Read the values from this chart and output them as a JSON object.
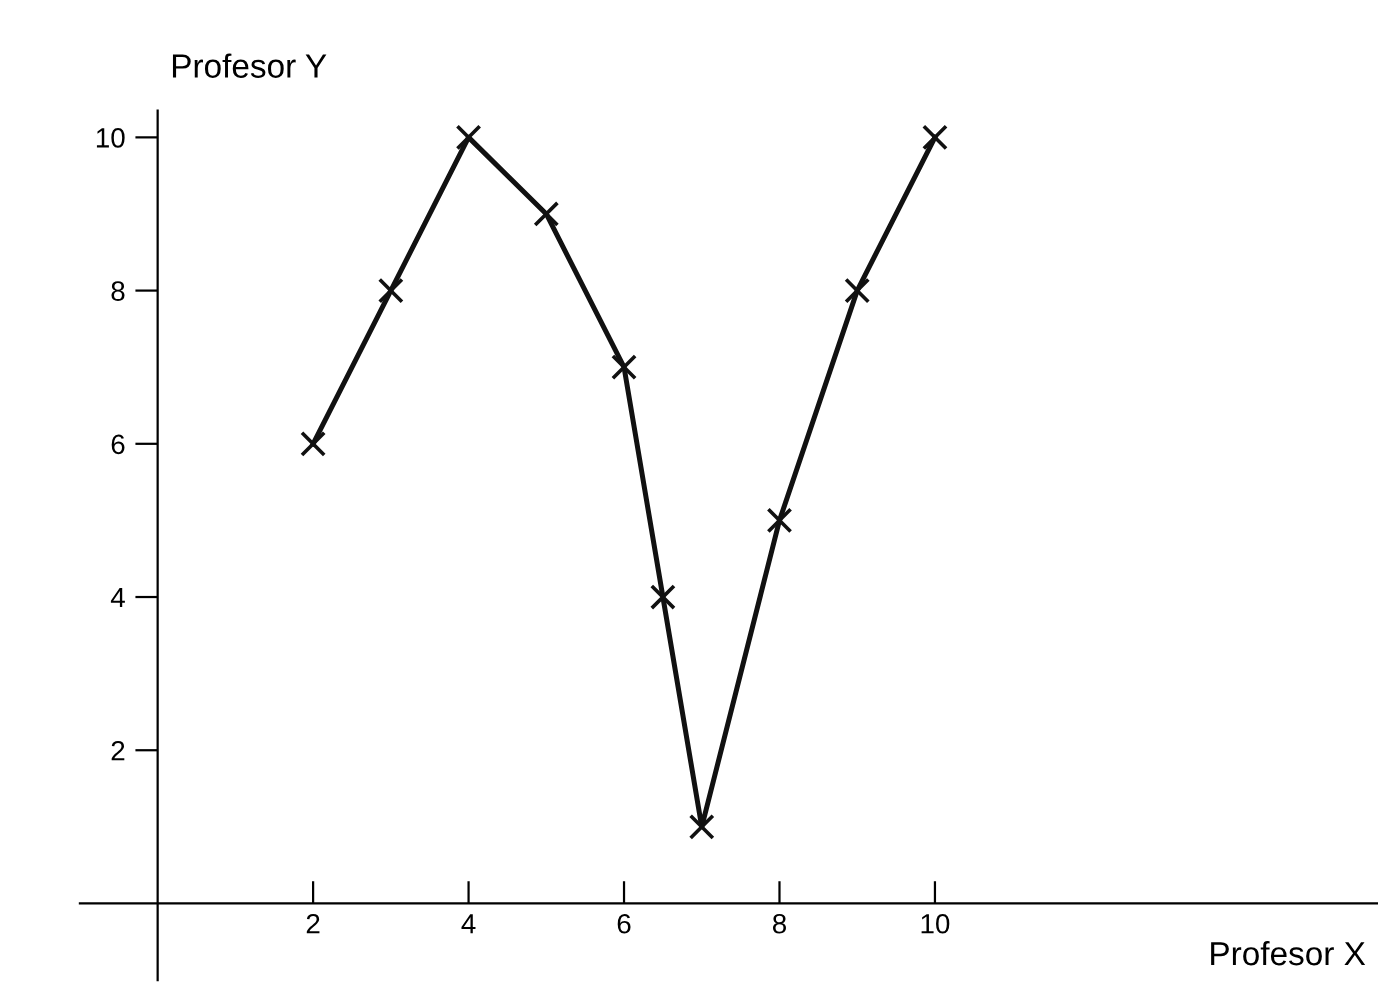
{
  "chart_data": {
    "type": "line",
    "xlabel": "Profesor X",
    "ylabel": "Profesor Y",
    "x": [
      2,
      3,
      4,
      5,
      6,
      6.5,
      7,
      8,
      9,
      10
    ],
    "series": [
      {
        "color": "#111111",
        "values": [
          6,
          8,
          10,
          9,
          7,
          4,
          1,
          5,
          8,
          10
        ]
      }
    ],
    "xlim": [
      -1,
      15.7
    ],
    "ylim": [
      -1,
      10.35
    ],
    "xticks": [
      2,
      4,
      6,
      8,
      10
    ],
    "yticks": [
      2,
      4,
      6,
      8,
      10
    ],
    "marker": "cross",
    "line_style": "solid",
    "grid": false,
    "legend": false
  }
}
